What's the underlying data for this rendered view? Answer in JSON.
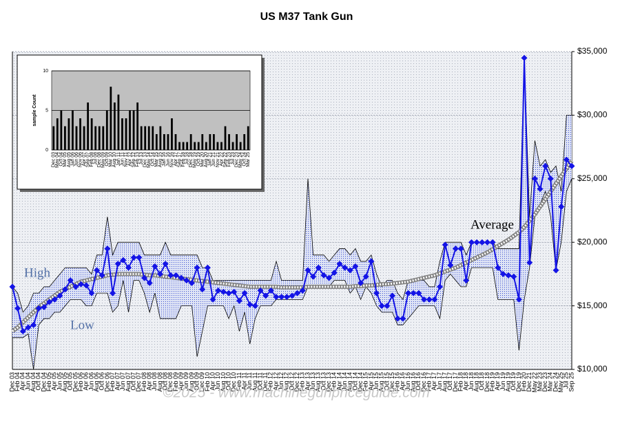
{
  "chart_data": [
    {
      "type": "line",
      "title": "US M37 Tank Gun",
      "annotations": [
        "High",
        "Low",
        "Average",
        "©2025 - www.machinegunpriceguide.com"
      ],
      "y_axis_position": "right",
      "grid": true,
      "ylim": [
        10000,
        35000
      ],
      "yticks": [
        {
          "value": 10000,
          "label": "$10,000"
        },
        {
          "value": 15000,
          "label": "$15,000"
        },
        {
          "value": 20000,
          "label": "$20,000"
        },
        {
          "value": 25000,
          "label": "$25,000"
        },
        {
          "value": 30000,
          "label": "$30,000"
        },
        {
          "value": 35000,
          "label": "$35,000"
        }
      ],
      "categories": [
        "Dec 03",
        "Feb 04",
        "Apr 04",
        "Jun 04",
        "Aug 04",
        "Oct 04",
        "Dec 04",
        "Feb 05",
        "Apr 05",
        "Jun 05",
        "Aug 05",
        "Oct 05",
        "Dec 05",
        "Feb 06",
        "Apr 06",
        "Jun 06",
        "Aug 06",
        "Oct 06",
        "Dec 06",
        "Feb 07",
        "Apr 07",
        "Jun 07",
        "Aug 07",
        "Oct 07",
        "Dec 07",
        "Feb 08",
        "Apr 08",
        "Jun 08",
        "Aug 08",
        "Oct 08",
        "Dec 08",
        "Feb 09",
        "Apr 09",
        "Jun 09",
        "Aug 09",
        "Oct 09",
        "Dec 09",
        "Feb 10",
        "Apr 10",
        "Jun 10",
        "Aug 10",
        "Oct 10",
        "Dec 10",
        "Feb 11",
        "Apr 11",
        "Jun 11",
        "Aug 11",
        "Oct 11",
        "Dec 11",
        "Feb 12",
        "Apr 12",
        "Jun 12",
        "Aug 12",
        "Oct 12",
        "Dec 12",
        "Feb 13",
        "Apr 13",
        "Jun 13",
        "Aug 13",
        "Oct 13",
        "Dec 13",
        "Feb 14",
        "Apr 14",
        "Jun 14",
        "Aug 14",
        "Oct 14",
        "Dec 14",
        "Feb 15",
        "Apr 15",
        "Jun 15",
        "Aug 15",
        "Oct 15",
        "Dec 15",
        "Feb 16",
        "Apr 16",
        "Jun 16",
        "Aug 16",
        "Oct 16",
        "Dec 16",
        "Feb 17",
        "Apr 17",
        "Jun 17",
        "Aug 17",
        "Oct 17",
        "Dec 17",
        "Feb 18",
        "Apr 18",
        "Jun 18",
        "Aug 18",
        "Oct 18",
        "Dec 18",
        "Feb 19",
        "Apr 19",
        "Jun 19",
        "Aug 19",
        "Oct 19",
        "Dec 19",
        "Feb 20",
        "Dec 21",
        "May 22",
        "Mar 23",
        "Dec 23",
        "Mar 24",
        "Dec 24",
        "May 25",
        "Jul 25",
        "Sep 25"
      ],
      "series": [
        {
          "name": "High",
          "color": "#000000",
          "style": "band-top",
          "values": [
            16500,
            16000,
            14500,
            15000,
            16000,
            16000,
            16500,
            16500,
            17000,
            17500,
            18000,
            18000,
            18000,
            18000,
            18000,
            17500,
            19000,
            19000,
            22000,
            19000,
            20000,
            20000,
            20000,
            20000,
            20000,
            19000,
            19000,
            19000,
            19000,
            20000,
            19000,
            19000,
            19000,
            19000,
            19000,
            19000,
            18000,
            18000,
            17000,
            17000,
            17000,
            17000,
            17000,
            17000,
            17000,
            17000,
            17000,
            17000,
            17000,
            17000,
            18500,
            17000,
            17000,
            17000,
            17000,
            17000,
            25000,
            19000,
            19000,
            19000,
            18500,
            19000,
            19500,
            19500,
            19000,
            19500,
            18500,
            18500,
            19000,
            17500,
            16500,
            17000,
            17000,
            16000,
            15500,
            17000,
            17000,
            17000,
            17000,
            16500,
            16500,
            18500,
            20000,
            20000,
            20000,
            20000,
            19000,
            20000,
            20000,
            20000,
            20000,
            20000,
            19500,
            19500,
            19500,
            19500,
            19500,
            34500,
            22000,
            28000,
            26000,
            26500,
            25500,
            26000,
            24000,
            30000,
            30000
          ]
        },
        {
          "name": "Low",
          "color": "#000000",
          "style": "band-bottom",
          "values": [
            12500,
            12500,
            12500,
            12800,
            10000,
            13500,
            14000,
            14000,
            14500,
            14500,
            15000,
            15500,
            15500,
            15500,
            15000,
            15000,
            16000,
            16000,
            16000,
            14500,
            15000,
            17000,
            14500,
            17000,
            17000,
            16000,
            14500,
            16000,
            14000,
            14000,
            14000,
            14000,
            15000,
            15000,
            15000,
            11000,
            13000,
            15000,
            15000,
            15000,
            15000,
            14000,
            15000,
            13000,
            14500,
            12000,
            14000,
            15000,
            15000,
            15000,
            15500,
            15500,
            15500,
            15500,
            15500,
            15500,
            16500,
            16500,
            16500,
            16500,
            16500,
            17000,
            17000,
            17000,
            16000,
            16500,
            15500,
            16500,
            16000,
            15000,
            14500,
            14500,
            14500,
            13500,
            13500,
            14000,
            14500,
            15000,
            15000,
            15000,
            15000,
            14000,
            17000,
            17500,
            17000,
            16500,
            16500,
            18000,
            18000,
            18000,
            18000,
            18000,
            15500,
            15500,
            15500,
            15500,
            11500,
            15500,
            18000,
            22000,
            23000,
            24000,
            22000,
            17800,
            20000,
            24000,
            25000
          ]
        },
        {
          "name": "Average",
          "color": "#808080",
          "style": "striped",
          "values": [
            13000,
            13300,
            13700,
            14100,
            14500,
            14900,
            15200,
            15500,
            15800,
            16100,
            16300,
            16500,
            16700,
            16900,
            17000,
            17100,
            17200,
            17300,
            17400,
            17450,
            17500,
            17500,
            17500,
            17500,
            17500,
            17450,
            17400,
            17400,
            17350,
            17300,
            17250,
            17200,
            17150,
            17100,
            17050,
            17000,
            16950,
            16900,
            16850,
            16800,
            16750,
            16700,
            16650,
            16600,
            16550,
            16500,
            16500,
            16500,
            16500,
            16500,
            16500,
            16450,
            16450,
            16450,
            16450,
            16450,
            16500,
            16500,
            16500,
            16500,
            16500,
            16500,
            16500,
            16500,
            16500,
            16550,
            16550,
            16600,
            16600,
            16650,
            16700,
            16700,
            16750,
            16800,
            16850,
            16900,
            17000,
            17100,
            17200,
            17300,
            17400,
            17550,
            17700,
            17850,
            18000,
            18200,
            18400,
            18600,
            18800,
            19000,
            19200,
            19450,
            19700,
            19950,
            20200,
            20500,
            20800,
            21200,
            21700,
            22200,
            22800,
            23400,
            24000,
            24600,
            25200,
            25800,
            26400
          ]
        },
        {
          "color": "#1414e6",
          "style": "marker-line",
          "marker": "diamond",
          "values": [
            16500,
            14800,
            13000,
            13300,
            13500,
            14800,
            14900,
            15300,
            15500,
            15800,
            16300,
            17000,
            16500,
            16700,
            16600,
            16000,
            17800,
            17400,
            19500,
            16000,
            18300,
            18600,
            18000,
            18800,
            18800,
            17200,
            16800,
            18100,
            17500,
            18300,
            17400,
            17400,
            17200,
            17000,
            16800,
            18000,
            16300,
            18000,
            15500,
            16200,
            16100,
            16000,
            16100,
            15400,
            16000,
            15100,
            15000,
            16200,
            15800,
            16200,
            15700,
            15700,
            15700,
            15800,
            16000,
            16200,
            17800,
            17300,
            18000,
            17400,
            17200,
            17600,
            18300,
            18000,
            17800,
            18100,
            16800,
            17300,
            18500,
            16000,
            15000,
            15000,
            15800,
            14000,
            14000,
            16000,
            16000,
            16000,
            15500,
            15500,
            15500,
            16500,
            19800,
            18200,
            19500,
            19500,
            17000,
            20000,
            20000,
            20000,
            20000,
            20000,
            18000,
            17500,
            17400,
            17300,
            15500,
            34500,
            18400,
            25000,
            24200,
            26000,
            25000,
            17800,
            22800,
            26500,
            26000
          ]
        }
      ]
    },
    {
      "type": "bar",
      "ylabel": "sample Count",
      "color": "#000000",
      "ylim": [
        0,
        10
      ],
      "yticks": [
        0,
        5,
        10
      ],
      "categories": [
        "Dec 03",
        "May 04",
        "Oct 04",
        "Mar 05",
        "Aug 05",
        "Jan 06",
        "Jun 06",
        "Nov 06",
        "Apr 07",
        "Sep 07",
        "Feb 08",
        "Jul 08",
        "Dec 08",
        "May 09",
        "Oct 09",
        "Mar 10",
        "Aug 10",
        "Jan 11",
        "Jun 11",
        "Nov 11",
        "Apr 12",
        "Sep 12",
        "Feb 13",
        "Jul 13",
        "Dec 13",
        "May 14",
        "Oct 14",
        "Mar 15",
        "Aug 15",
        "Jan 16",
        "Jun 16",
        "Nov 16",
        "Apr 17",
        "Sep 17",
        "Feb 18",
        "Jul 18",
        "Dec 18",
        "May 19",
        "Oct 19",
        "Mar 20",
        "Aug 20",
        "Jan 21",
        "Jun 21",
        "Nov 21",
        "Apr 22",
        "Sep 22",
        "Feb 23",
        "Jul 23",
        "Dec 23",
        "May 24",
        "Oct 24",
        "Mar 25"
      ],
      "values": [
        3,
        4,
        5,
        3,
        4,
        5,
        3,
        4,
        3,
        6,
        4,
        3,
        3,
        3,
        5,
        8,
        6,
        7,
        4,
        4,
        5,
        5,
        6,
        3,
        3,
        3,
        3,
        2,
        3,
        2,
        2,
        4,
        2,
        1,
        1,
        1,
        2,
        1,
        1,
        2,
        1,
        2,
        2,
        1,
        1,
        3,
        2,
        1,
        2,
        1,
        2,
        3
      ]
    }
  ]
}
